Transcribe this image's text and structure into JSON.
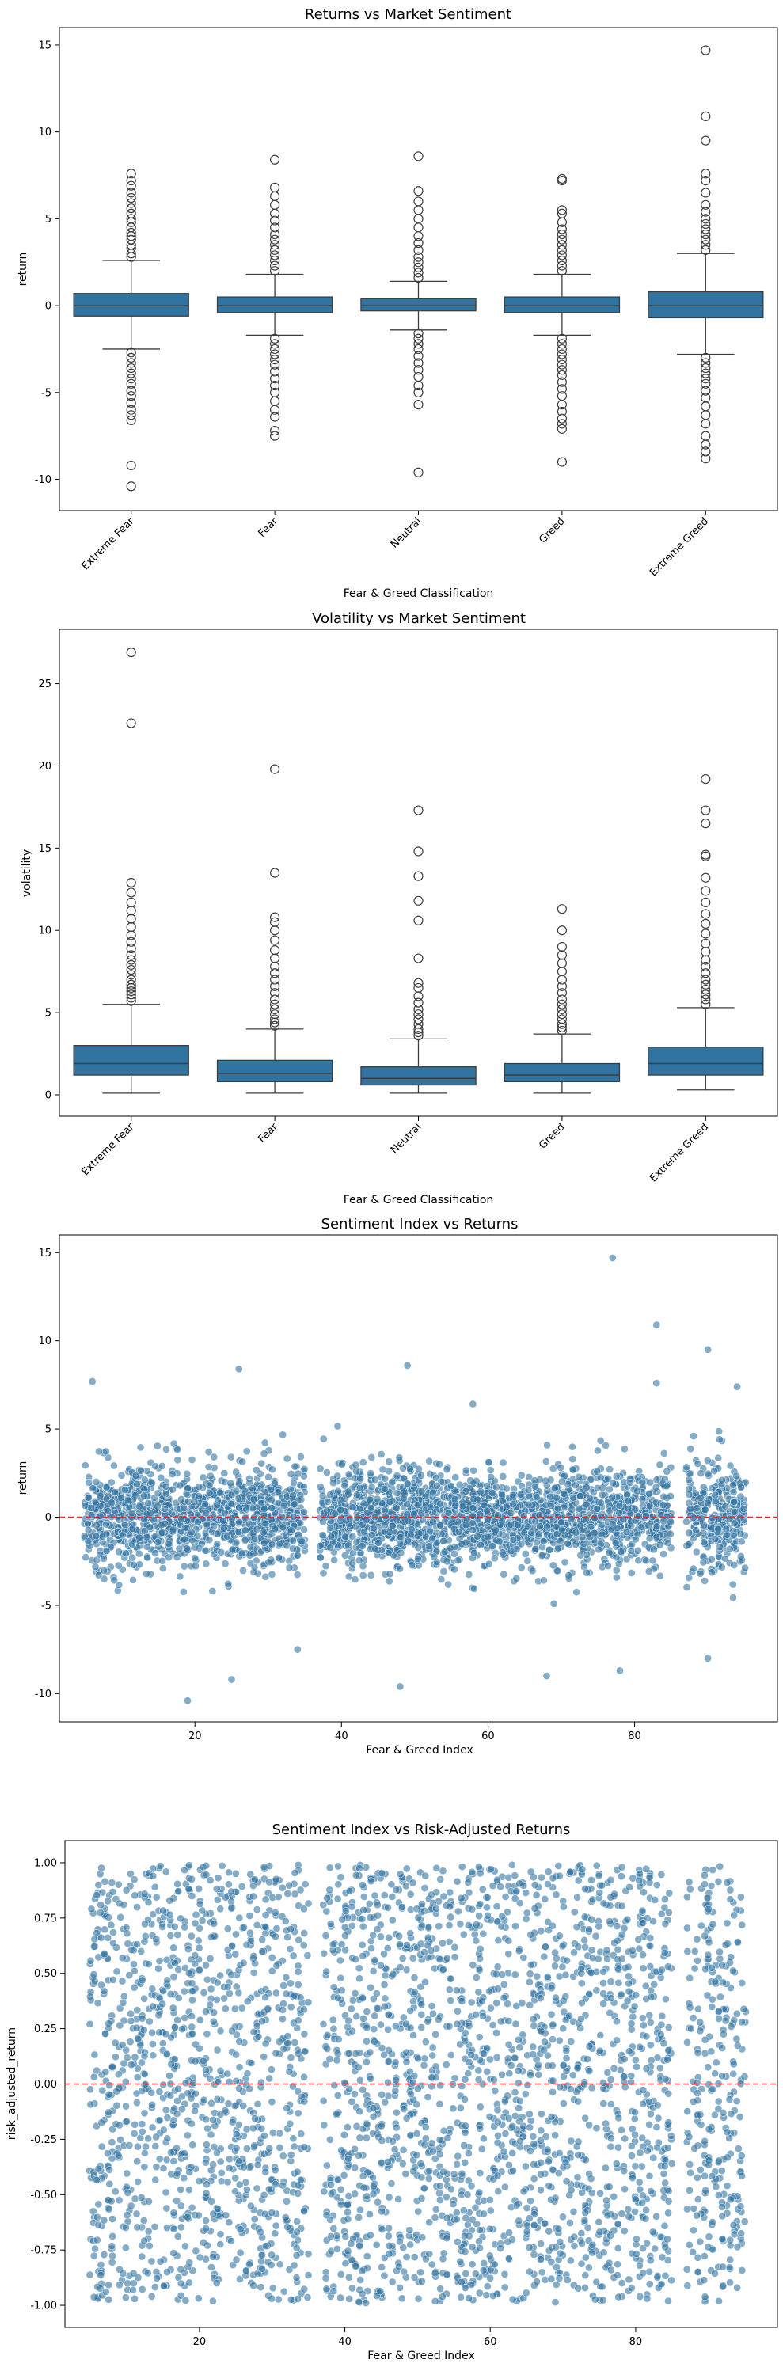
{
  "chart_data": [
    {
      "type": "box",
      "title": "Returns vs Market Sentiment",
      "xlabel": "Fear & Greed Classification",
      "ylabel": "return",
      "categories": [
        "Extreme Fear",
        "Fear",
        "Neutral",
        "Greed",
        "Extreme Greed"
      ],
      "ylim": [
        -11.8,
        16.0
      ],
      "yticks": [
        -10,
        -5,
        0,
        5,
        10,
        15
      ],
      "box_color": "#3274a1",
      "boxes": [
        {
          "q1": -0.6,
          "median": 0.0,
          "q3": 0.7,
          "whisker_low": -2.5,
          "whisker_high": 2.6,
          "outliers": [
            2.8,
            3.0,
            3.3,
            3.5,
            3.8,
            4.0,
            4.2,
            4.5,
            4.8,
            5.0,
            5.3,
            5.6,
            5.9,
            6.2,
            6.5,
            6.9,
            7.2,
            7.6,
            -2.7,
            -3.0,
            -3.3,
            -3.6,
            -3.9,
            -4.2,
            -4.5,
            -4.9,
            -5.2,
            -5.6,
            -6.0,
            -6.3,
            -6.6,
            -9.2,
            -10.4
          ]
        },
        {
          "q1": -0.4,
          "median": 0.0,
          "q3": 0.5,
          "whisker_low": -1.7,
          "whisker_high": 1.8,
          "outliers": [
            2.0,
            2.3,
            2.6,
            2.9,
            3.2,
            3.5,
            3.8,
            4.1,
            4.5,
            4.9,
            5.3,
            5.8,
            6.3,
            6.8,
            8.4,
            -1.9,
            -2.2,
            -2.5,
            -2.8,
            -3.1,
            -3.4,
            -3.8,
            -4.2,
            -4.6,
            -5.0,
            -5.5,
            -6.0,
            -6.4,
            -7.2,
            -7.5
          ]
        },
        {
          "q1": -0.3,
          "median": 0.0,
          "q3": 0.4,
          "whisker_low": -1.4,
          "whisker_high": 1.4,
          "outliers": [
            1.6,
            1.9,
            2.2,
            2.5,
            2.8,
            3.2,
            3.6,
            4.0,
            4.5,
            5.0,
            5.5,
            6.0,
            6.6,
            8.6,
            -1.6,
            -1.9,
            -2.2,
            -2.5,
            -2.9,
            -3.3,
            -3.7,
            -4.1,
            -4.6,
            -5.0,
            -5.7,
            -9.6
          ]
        },
        {
          "q1": -0.4,
          "median": 0.0,
          "q3": 0.5,
          "whisker_low": -1.7,
          "whisker_high": 1.8,
          "outliers": [
            2.0,
            2.3,
            2.6,
            2.9,
            3.2,
            3.5,
            3.8,
            4.1,
            4.4,
            4.8,
            5.3,
            5.5,
            7.2,
            7.3,
            -1.9,
            -2.2,
            -2.5,
            -2.8,
            -3.1,
            -3.4,
            -3.7,
            -4.0,
            -4.4,
            -4.8,
            -5.2,
            -5.7,
            -6.1,
            -6.5,
            -6.8,
            -7.1,
            -9.0
          ]
        },
        {
          "q1": -0.7,
          "median": 0.0,
          "q3": 0.8,
          "whisker_low": -2.8,
          "whisker_high": 3.0,
          "outliers": [
            3.2,
            3.5,
            3.8,
            4.1,
            4.4,
            4.7,
            5.0,
            5.4,
            5.8,
            6.5,
            7.2,
            7.6,
            9.5,
            10.9,
            14.7,
            -3.0,
            -3.3,
            -3.6,
            -3.9,
            -4.2,
            -4.5,
            -4.9,
            -5.3,
            -5.8,
            -6.3,
            -6.8,
            -7.5,
            -8.0,
            -8.4,
            -8.8
          ]
        }
      ]
    },
    {
      "type": "box",
      "title": "Volatility vs Market Sentiment",
      "xlabel": "Fear & Greed Classification",
      "ylabel": "volatility",
      "categories": [
        "Extreme Fear",
        "Fear",
        "Neutral",
        "Greed",
        "Extreme Greed"
      ],
      "ylim": [
        -1.3,
        28.3
      ],
      "yticks": [
        0,
        5,
        10,
        15,
        20,
        25
      ],
      "box_color": "#3274a1",
      "boxes": [
        {
          "q1": 1.2,
          "median": 1.9,
          "q3": 3.0,
          "whisker_low": 0.1,
          "whisker_high": 5.5,
          "outliers": [
            5.7,
            5.9,
            6.1,
            6.3,
            6.5,
            6.7,
            7.0,
            7.3,
            7.6,
            7.9,
            8.2,
            8.5,
            8.9,
            9.3,
            9.7,
            10.2,
            10.7,
            11.2,
            11.7,
            12.3,
            12.9,
            22.6,
            26.9
          ]
        },
        {
          "q1": 0.8,
          "median": 1.3,
          "q3": 2.1,
          "whisker_low": 0.1,
          "whisker_high": 4.0,
          "outliers": [
            4.2,
            4.4,
            4.6,
            4.9,
            5.2,
            5.5,
            5.8,
            6.2,
            6.6,
            7.0,
            7.4,
            7.8,
            8.3,
            8.8,
            9.4,
            10.0,
            10.5,
            10.8,
            13.5,
            19.8
          ]
        },
        {
          "q1": 0.6,
          "median": 1.0,
          "q3": 1.7,
          "whisker_low": 0.1,
          "whisker_high": 3.4,
          "outliers": [
            3.6,
            3.8,
            4.0,
            4.3,
            4.6,
            4.9,
            5.2,
            5.6,
            6.0,
            6.5,
            6.8,
            8.3,
            10.6,
            11.8,
            13.3,
            14.8,
            17.3
          ]
        },
        {
          "q1": 0.8,
          "median": 1.2,
          "q3": 1.9,
          "whisker_low": 0.1,
          "whisker_high": 3.7,
          "outliers": [
            3.9,
            4.1,
            4.3,
            4.6,
            4.9,
            5.2,
            5.5,
            5.8,
            6.2,
            6.6,
            7.0,
            7.5,
            8.0,
            8.5,
            9.0,
            10.0,
            11.3
          ]
        },
        {
          "q1": 1.2,
          "median": 1.9,
          "q3": 2.9,
          "whisker_low": 0.3,
          "whisker_high": 5.3,
          "outliers": [
            5.5,
            5.8,
            6.1,
            6.4,
            6.7,
            7.0,
            7.4,
            7.8,
            8.2,
            8.7,
            9.2,
            9.8,
            10.4,
            11.0,
            11.7,
            12.4,
            13.2,
            14.5,
            14.6,
            16.5,
            17.3,
            19.2
          ]
        }
      ]
    },
    {
      "type": "scatter",
      "title": "Sentiment Index vs Returns",
      "xlabel": "Fear & Greed Index",
      "ylabel": "return",
      "xlim": [
        1.5,
        99.5
      ],
      "ylim": [
        -11.6,
        16.0
      ],
      "xticks": [
        20,
        40,
        60,
        80
      ],
      "yticks": [
        -10,
        -5,
        0,
        5,
        10,
        15
      ],
      "point_color": "#3274a1",
      "x_range": [
        5,
        95
      ],
      "x_gaps": [
        [
          35,
          37
        ],
        [
          85,
          87
        ]
      ],
      "n_points": 3200,
      "spread_sd": 1.45,
      "notable_points": [
        {
          "x": 77,
          "y": 14.7
        },
        {
          "x": 83,
          "y": 10.9
        },
        {
          "x": 90,
          "y": 9.5
        },
        {
          "x": 49,
          "y": 8.6
        },
        {
          "x": 26,
          "y": 8.4
        },
        {
          "x": 6,
          "y": 7.7
        },
        {
          "x": 83,
          "y": 7.6
        },
        {
          "x": 94,
          "y": 7.4
        },
        {
          "x": 19,
          "y": -10.4
        },
        {
          "x": 48,
          "y": -9.6
        },
        {
          "x": 25,
          "y": -9.2
        },
        {
          "x": 68,
          "y": -9.0
        },
        {
          "x": 78,
          "y": -8.7
        },
        {
          "x": 90,
          "y": -8.0
        },
        {
          "x": 34,
          "y": -7.5
        }
      ],
      "reference_line": {
        "y": 0,
        "color": "#e8282b",
        "style": "dashed"
      }
    },
    {
      "type": "scatter",
      "title": "Sentiment Index vs Risk-Adjusted Returns",
      "xlabel": "Fear & Greed Index",
      "ylabel": "risk_adjusted_return",
      "xlim": [
        1.5,
        99.5
      ],
      "ylim": [
        -1.1,
        1.1
      ],
      "xticks": [
        20,
        40,
        60,
        80
      ],
      "yticks": [
        -1.0,
        -0.75,
        -0.5,
        -0.25,
        0.0,
        0.25,
        0.5,
        0.75,
        1.0
      ],
      "point_color": "#3274a1",
      "x_range": [
        5,
        95
      ],
      "x_gaps": [
        [
          35,
          37
        ],
        [
          85,
          87
        ]
      ],
      "n_points": 3200,
      "y_distribution": "uniform",
      "reference_line": {
        "y": 0,
        "color": "#e8282b",
        "style": "dashed"
      }
    }
  ]
}
